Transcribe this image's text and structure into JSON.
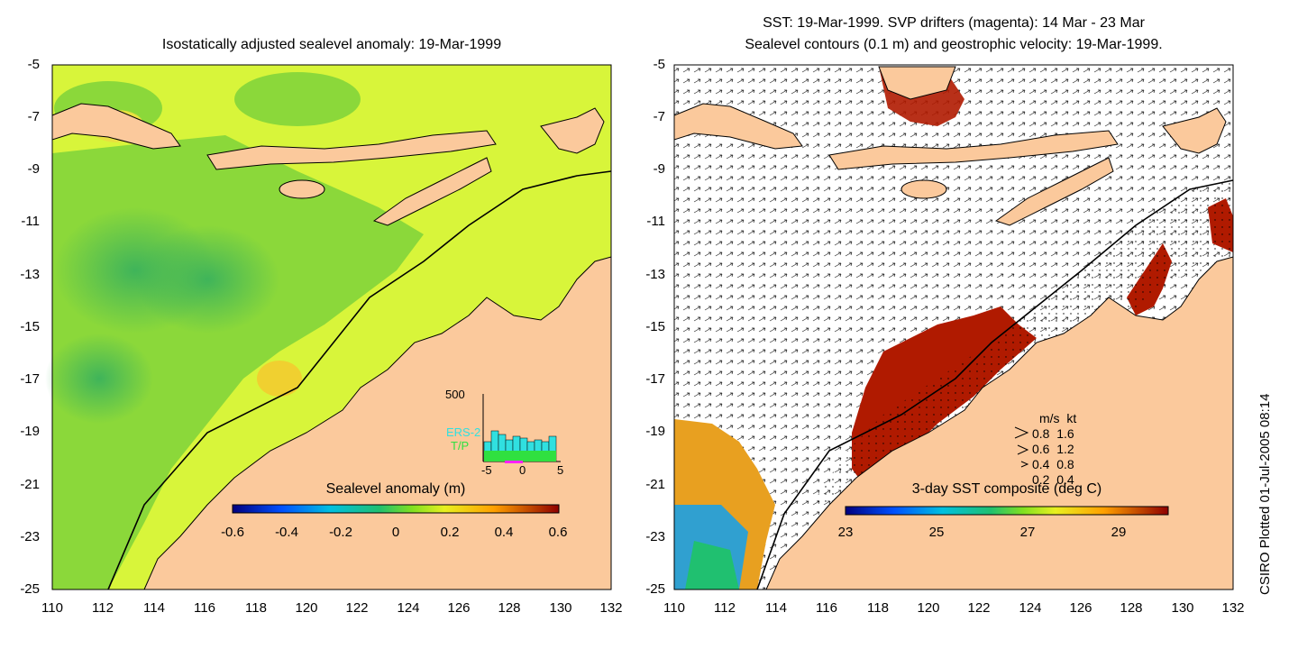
{
  "left_panel": {
    "title": "Isostatically adjusted sealevel anomaly: 19-Mar-1999",
    "colorbar": {
      "title": "Sealevel anomaly (m)",
      "ticks": [
        "-0.6",
        "-0.4",
        "-0.2",
        "0",
        "0.2",
        "0.4",
        "0.6"
      ]
    },
    "inset": {
      "ymax": "500",
      "series1": "ERS-2",
      "series2": "T/P",
      "xticks": [
        "-5",
        "0",
        "5"
      ]
    }
  },
  "right_panel": {
    "title_line1": "SST: 19-Mar-1999. SVP drifters (magenta): 14 Mar - 23 Mar",
    "title_line2": "Sealevel contours (0.1 m) and geostrophic velocity: 19-Mar-1999.",
    "colorbar": {
      "title": "3-day SST composite (deg C)",
      "ticks": [
        "23",
        "25",
        "27",
        "29"
      ]
    },
    "velocity_legend": {
      "header": "m/s  kt",
      "rows": [
        "0.8  1.6",
        "0.6  1.2",
        "0.4  0.8",
        "0.2  0.4"
      ]
    }
  },
  "axes": {
    "y_ticks": [
      "-5",
      "-7",
      "-9",
      "-11",
      "-13",
      "-15",
      "-17",
      "-19",
      "-21",
      "-23",
      "-25"
    ],
    "x_ticks": [
      "110",
      "112",
      "114",
      "116",
      "118",
      "120",
      "122",
      "124",
      "126",
      "128",
      "130",
      "132"
    ]
  },
  "footer": {
    "side_label": "CSIRO Plotted 01-Jul-2005 08:14"
  },
  "colors": {
    "land": "#fbc99c",
    "sea_green": "#7bd23b",
    "sea_yellow": "#d8f53a",
    "sst_hot": "#b01a00"
  }
}
